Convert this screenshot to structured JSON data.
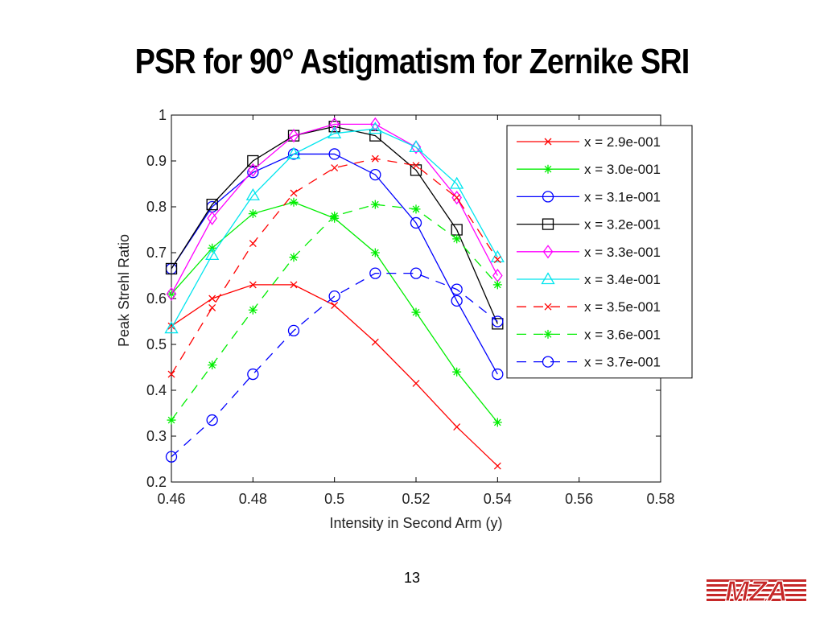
{
  "slide": {
    "title": "PSR for 90° Astigmatism for Zernike SRI",
    "page_number": "13",
    "logo_text": "MZA"
  },
  "chart_data": {
    "type": "line",
    "xlabel": "Intensity in Second Arm (y)",
    "ylabel": "Peak Strehl Ratio",
    "xlim": [
      0.46,
      0.58
    ],
    "ylim": [
      0.2,
      1.0
    ],
    "x_ticks": [
      "0.46",
      "0.48",
      "0.5",
      "0.52",
      "0.54",
      "0.56",
      "0.58"
    ],
    "y_ticks": [
      "0.2",
      "0.3",
      "0.4",
      "0.5",
      "0.6",
      "0.7",
      "0.8",
      "0.9",
      "1"
    ],
    "grid": false,
    "legend_position": "top-right",
    "x": [
      0.46,
      0.47,
      0.48,
      0.49,
      0.5,
      0.51,
      0.52,
      0.53,
      0.54
    ],
    "series": [
      {
        "name": "x = 2.9e-001",
        "color": "#ff0000",
        "marker": "x",
        "line": "solid",
        "values": [
          0.54,
          0.6,
          0.63,
          0.63,
          0.585,
          0.505,
          0.415,
          0.32,
          0.235
        ]
      },
      {
        "name": "x = 3.0e-001",
        "color": "#00ee00",
        "marker": "star",
        "line": "solid",
        "values": [
          0.61,
          0.71,
          0.785,
          0.81,
          0.775,
          0.7,
          0.57,
          0.44,
          0.33
        ]
      },
      {
        "name": "x = 3.1e-001",
        "color": "#0000ff",
        "marker": "circle",
        "line": "solid",
        "values": [
          0.665,
          0.8,
          0.875,
          0.915,
          0.915,
          0.87,
          0.765,
          0.595,
          0.435
        ]
      },
      {
        "name": "x = 3.2e-001",
        "color": "#000000",
        "marker": "square",
        "line": "solid",
        "values": [
          0.665,
          0.805,
          0.9,
          0.955,
          0.975,
          0.955,
          0.88,
          0.75,
          0.545
        ]
      },
      {
        "name": "x = 3.3e-001",
        "color": "#ff00ff",
        "marker": "diamond",
        "line": "solid",
        "values": [
          0.61,
          0.775,
          0.88,
          0.955,
          0.98,
          0.98,
          0.93,
          0.82,
          0.65
        ]
      },
      {
        "name": "x = 3.4e-001",
        "color": "#00e5ee",
        "marker": "triangle",
        "line": "solid",
        "values": [
          0.535,
          0.695,
          0.825,
          0.915,
          0.96,
          0.97,
          0.93,
          0.85,
          0.69
        ]
      },
      {
        "name": "x = 3.5e-001",
        "color": "#ff0000",
        "marker": "x",
        "line": "dashed",
        "values": [
          0.435,
          0.58,
          0.72,
          0.83,
          0.885,
          0.905,
          0.89,
          0.82,
          0.685
        ]
      },
      {
        "name": "x = 3.6e-001",
        "color": "#00ee00",
        "marker": "star",
        "line": "dashed",
        "values": [
          0.335,
          0.455,
          0.575,
          0.69,
          0.78,
          0.805,
          0.795,
          0.73,
          0.63
        ]
      },
      {
        "name": "x = 3.7e-001",
        "color": "#0000ff",
        "marker": "circle",
        "line": "dashed",
        "values": [
          0.255,
          0.335,
          0.435,
          0.53,
          0.605,
          0.655,
          0.655,
          0.62,
          0.55
        ]
      }
    ]
  }
}
